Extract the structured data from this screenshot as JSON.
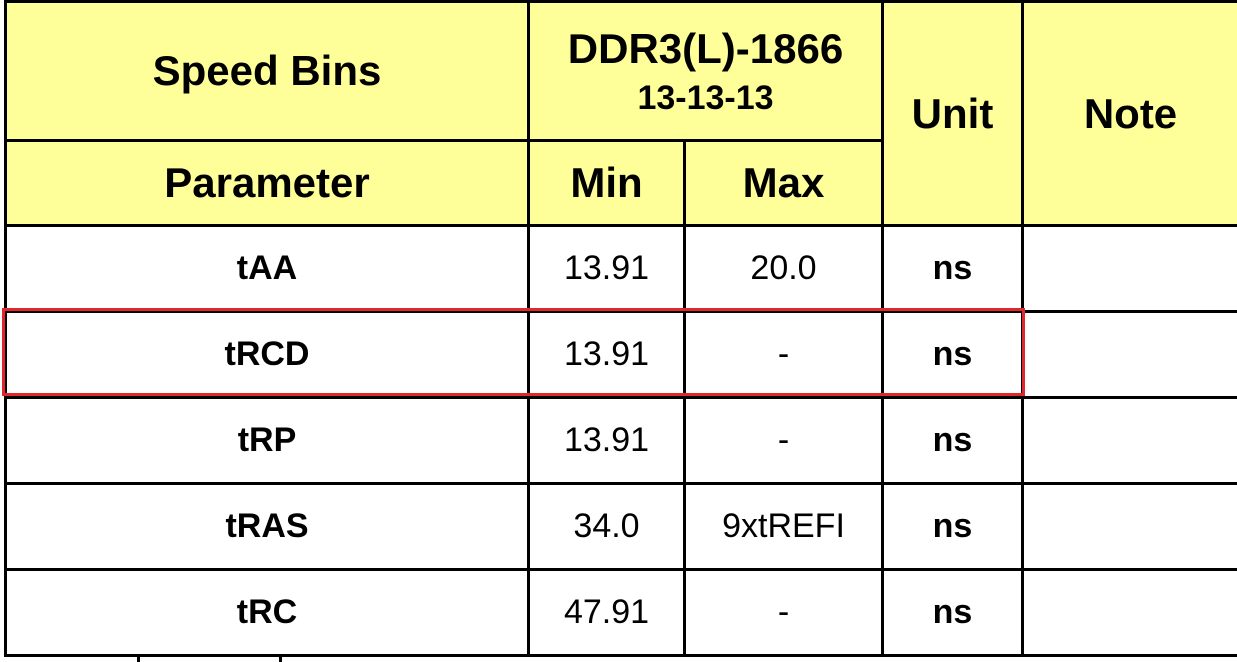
{
  "header": {
    "speed_bins": "Speed Bins",
    "grade_line1": "DDR3(L)-1866",
    "grade_line2": "13-13-13",
    "unit": "Unit",
    "note": "Note",
    "parameter": "Parameter",
    "min": "Min",
    "max": "Max"
  },
  "rows": [
    {
      "param": "tAA",
      "min": "13.91",
      "max": "20.0",
      "unit": "ns",
      "note": ""
    },
    {
      "param": "tRCD",
      "min": "13.91",
      "max": "-",
      "unit": "ns",
      "note": ""
    },
    {
      "param": "tRP",
      "min": "13.91",
      "max": "-",
      "unit": "ns",
      "note": ""
    },
    {
      "param": "tRAS",
      "min": "34.0",
      "max": "9xtREFI",
      "unit": "ns",
      "note": ""
    },
    {
      "param": "tRC",
      "min": "47.91",
      "max": "-",
      "unit": "ns",
      "note": ""
    }
  ],
  "highlight": {
    "row": "tRCD",
    "color": "#e0262f"
  },
  "colors": {
    "header_bg": "#ffff99",
    "border": "#000000"
  }
}
